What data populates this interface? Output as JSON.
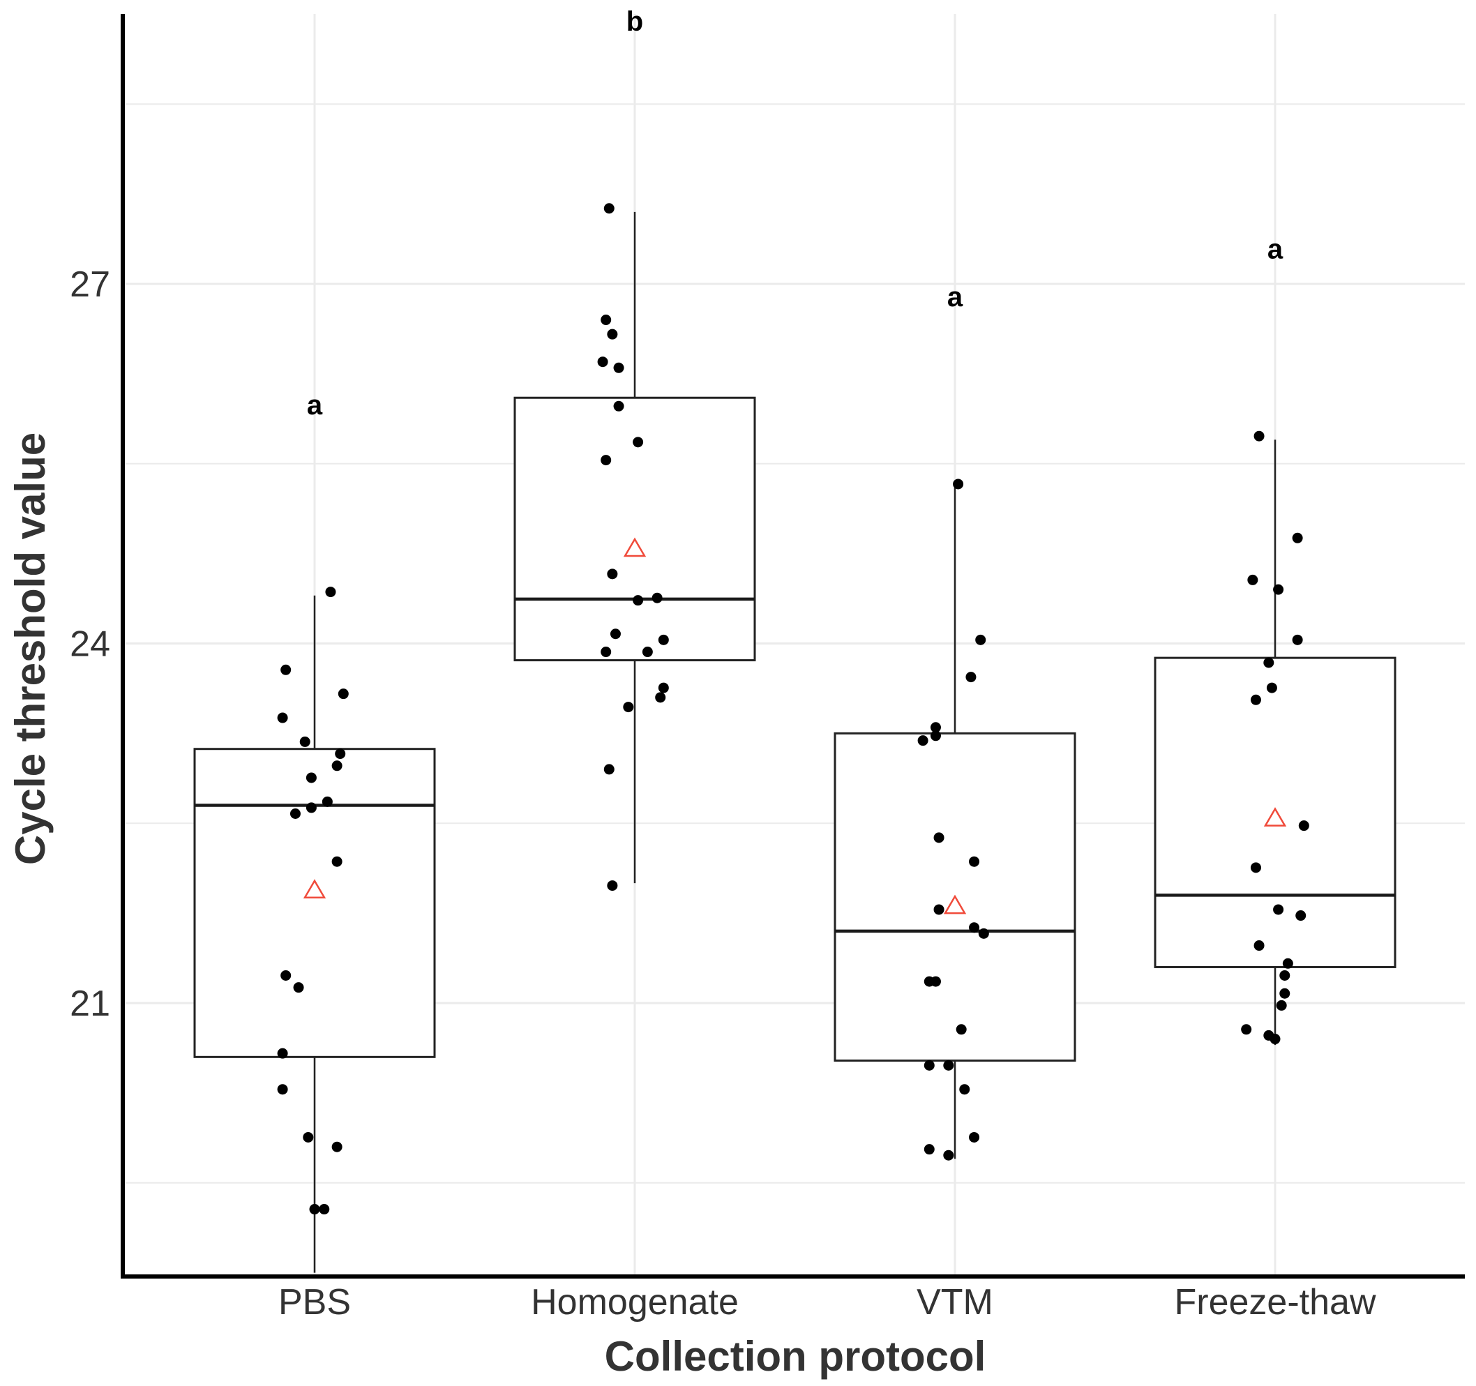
{
  "chart_data": {
    "type": "box",
    "title": "",
    "xlabel": "Collection protocol",
    "ylabel": "Cycle threshold value",
    "ylim": [
      18.8,
      29.4
    ],
    "yticks": [
      21,
      24,
      27
    ],
    "ytick_labels": [
      "21",
      "24",
      "27"
    ],
    "minor_gridlines": [
      19.5,
      22.5,
      25.5,
      28.5
    ],
    "grid": true,
    "categories": [
      "PBS",
      "Homogenate",
      "VTM",
      "Freeze-thaw"
    ],
    "boxes": [
      {
        "name": "PBS",
        "q1": 20.55,
        "median": 22.65,
        "q3": 23.12,
        "whisker_low": 18.75,
        "whisker_high": 24.4,
        "mean": 21.95,
        "letter": "a",
        "points": [
          [
            0.05,
            24.43
          ],
          [
            -0.09,
            23.78
          ],
          [
            0.09,
            23.58
          ],
          [
            -0.1,
            23.38
          ],
          [
            -0.03,
            23.18
          ],
          [
            0.08,
            23.08
          ],
          [
            0.07,
            22.98
          ],
          [
            -0.01,
            22.88
          ],
          [
            0.04,
            22.68
          ],
          [
            -0.01,
            22.63
          ],
          [
            -0.06,
            22.58
          ],
          [
            0.07,
            22.18
          ],
          [
            -0.09,
            21.23
          ],
          [
            -0.05,
            21.13
          ],
          [
            -0.1,
            20.58
          ],
          [
            -0.1,
            20.28
          ],
          [
            -0.02,
            19.88
          ],
          [
            0.07,
            19.8
          ],
          [
            0.0,
            19.28
          ],
          [
            0.03,
            19.28
          ]
        ]
      },
      {
        "name": "Homogenate",
        "q1": 23.86,
        "median": 24.37,
        "q3": 26.05,
        "whisker_low": 22.0,
        "whisker_high": 27.6,
        "mean": 24.8,
        "letter": "b",
        "points": [
          [
            -0.08,
            27.63
          ],
          [
            -0.09,
            26.7
          ],
          [
            -0.07,
            26.58
          ],
          [
            -0.1,
            26.35
          ],
          [
            -0.05,
            26.3
          ],
          [
            -0.05,
            25.98
          ],
          [
            0.01,
            25.68
          ],
          [
            -0.09,
            25.53
          ],
          [
            -0.07,
            24.58
          ],
          [
            0.07,
            24.38
          ],
          [
            0.01,
            24.36
          ],
          [
            0.09,
            24.03
          ],
          [
            -0.06,
            24.08
          ],
          [
            -0.09,
            23.93
          ],
          [
            0.04,
            23.93
          ],
          [
            0.09,
            23.63
          ],
          [
            0.08,
            23.55
          ],
          [
            -0.02,
            23.47
          ],
          [
            -0.08,
            22.95
          ],
          [
            -0.07,
            21.98
          ]
        ]
      },
      {
        "name": "VTM",
        "q1": 20.52,
        "median": 21.6,
        "q3": 23.25,
        "whisker_low": 19.7,
        "whisker_high": 25.3,
        "mean": 21.82,
        "letter": "a",
        "points": [
          [
            0.01,
            25.33
          ],
          [
            0.08,
            24.03
          ],
          [
            0.05,
            23.72
          ],
          [
            -0.06,
            23.3
          ],
          [
            -0.06,
            23.23
          ],
          [
            -0.1,
            23.19
          ],
          [
            -0.05,
            22.38
          ],
          [
            0.06,
            22.18
          ],
          [
            -0.05,
            21.78
          ],
          [
            0.06,
            21.63
          ],
          [
            0.09,
            21.58
          ],
          [
            -0.06,
            21.18
          ],
          [
            -0.08,
            21.18
          ],
          [
            0.02,
            20.78
          ],
          [
            -0.08,
            20.48
          ],
          [
            -0.02,
            20.48
          ],
          [
            0.03,
            20.28
          ],
          [
            0.06,
            19.88
          ],
          [
            -0.08,
            19.78
          ],
          [
            -0.02,
            19.73
          ]
        ]
      },
      {
        "name": "Freeze-thaw",
        "q1": 21.3,
        "median": 21.9,
        "q3": 23.88,
        "whisker_low": 20.65,
        "whisker_high": 25.7,
        "mean": 22.55,
        "letter": "a",
        "points": [
          [
            -0.05,
            25.73
          ],
          [
            0.07,
            24.88
          ],
          [
            -0.07,
            24.53
          ],
          [
            0.01,
            24.45
          ],
          [
            0.07,
            24.03
          ],
          [
            -0.02,
            23.84
          ],
          [
            -0.01,
            23.63
          ],
          [
            -0.06,
            23.53
          ],
          [
            0.09,
            22.48
          ],
          [
            -0.06,
            22.13
          ],
          [
            0.01,
            21.78
          ],
          [
            0.08,
            21.73
          ],
          [
            -0.05,
            21.48
          ],
          [
            0.04,
            21.33
          ],
          [
            0.03,
            21.23
          ],
          [
            0.03,
            21.08
          ],
          [
            0.02,
            20.98
          ],
          [
            -0.09,
            20.78
          ],
          [
            -0.02,
            20.73
          ],
          [
            0.0,
            20.7
          ]
        ]
      }
    ],
    "point_color": "#000000",
    "mean_marker_color": "#f04a3a",
    "box_edge_color": "#222222",
    "grid_color": "#ebebeb",
    "axis_color": "#000000"
  }
}
